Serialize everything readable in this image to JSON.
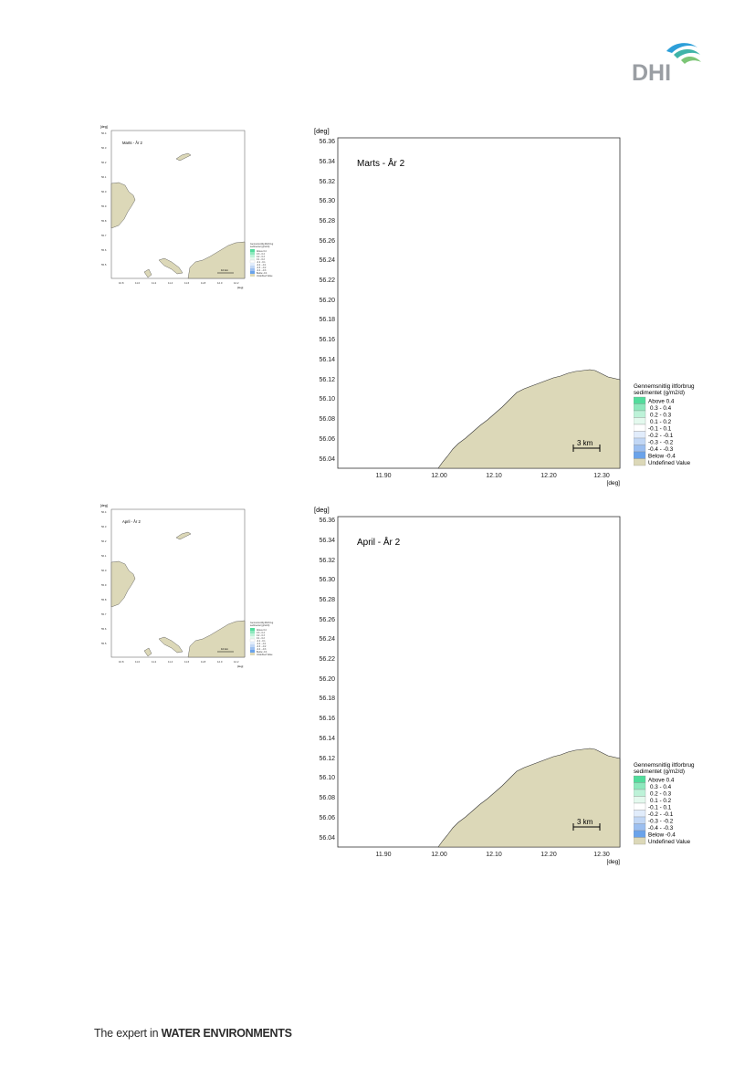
{
  "logo": {
    "text": "DHI"
  },
  "footer": {
    "prefix": "The expert in ",
    "emphasis": "WATER ENVIRONMENTS"
  },
  "legend": {
    "title_line1": "Gennemsnitlig iltforbrug",
    "title_line2": "sedimentet (g/m2/d)",
    "items": [
      {
        "label": "Above  0.4",
        "color": "#52dc9c"
      },
      {
        "label": "0.3 -  0.4",
        "color": "#8de8bd"
      },
      {
        "label": "0.2 -  0.3",
        "color": "#bdf2d8"
      },
      {
        "label": "0.1 -  0.2",
        "color": "#e4f9ee"
      },
      {
        "label": "-0.1 -  0.1",
        "color": "#ffffff"
      },
      {
        "label": "-0.2 - -0.1",
        "color": "#e1ecfb"
      },
      {
        "label": "-0.3 - -0.2",
        "color": "#c2d7f5"
      },
      {
        "label": "-0.4 - -0.3",
        "color": "#9cbff0"
      },
      {
        "label": "Below -0.4",
        "color": "#6aa3ea"
      },
      {
        "label": "Undefined Value",
        "color": "#dcd8b8"
      }
    ]
  },
  "maps": [
    {
      "title": "Marts - År 2",
      "unit": "[deg]",
      "y_ticks": [
        "56.36",
        "56.34",
        "56.32",
        "56.30",
        "56.28",
        "56.26",
        "56.24",
        "56.22",
        "56.20",
        "56.18",
        "56.16",
        "56.14",
        "56.12",
        "56.10",
        "56.08",
        "56.06",
        "56.04"
      ],
      "x_ticks": [
        "11.90",
        "12.00",
        "12.10",
        "12.20",
        "12.30"
      ],
      "scale_bar": "3 km"
    },
    {
      "title": "April - År 2",
      "unit": "[deg]",
      "y_ticks": [
        "56.36",
        "56.34",
        "56.32",
        "56.30",
        "56.28",
        "56.26",
        "56.24",
        "56.22",
        "56.20",
        "56.18",
        "56.16",
        "56.14",
        "56.12",
        "56.10",
        "56.08",
        "56.06",
        "56.04"
      ],
      "x_ticks": [
        "11.90",
        "12.00",
        "12.10",
        "12.20",
        "12.30"
      ],
      "scale_bar": "3 km"
    }
  ],
  "overview_maps": [
    {
      "title": "Marts - År 2",
      "unit": "[deg]",
      "y_ticks": [
        "56.4",
        "56.3",
        "56.2",
        "56.1",
        "56.0",
        "55.9",
        "55.8",
        "55.7",
        "55.6",
        "55.5"
      ],
      "x_ticks": [
        "10.8",
        "11.0",
        "11.2",
        "11.4",
        "11.6",
        "11.8",
        "12.0",
        "12.2"
      ],
      "scale_bar": "10 km",
      "legend_items": [
        "Gennemsnitlig iltforbrug",
        "sedimentet (g/m2/d)",
        "Above 0.4",
        "0.3 - 0.4",
        "0.2 - 0.3",
        "0.1 - 0.2",
        "-0.1 - 0.1",
        "-0.2 - -0.1",
        "-0.3 - -0.2",
        "-0.4 - -0.3",
        "Below -0.4",
        "Undefined Value"
      ]
    },
    {
      "title": "April - År 2",
      "unit": "[deg]",
      "y_ticks": [
        "56.4",
        "56.3",
        "56.2",
        "56.1",
        "56.0",
        "55.9",
        "55.8",
        "55.7",
        "55.6",
        "55.5"
      ],
      "x_ticks": [
        "10.8",
        "11.0",
        "11.2",
        "11.4",
        "11.6",
        "11.8",
        "12.0",
        "12.2"
      ],
      "scale_bar": "10 km",
      "legend_items": [
        "Gennemsnitlig iltforbrug",
        "sedimentet (g/m2/d)",
        "Above 0.4",
        "0.3 - 0.4",
        "0.2 - 0.3",
        "0.1 - 0.2",
        "-0.1 - 0.1",
        "-0.2 - -0.1",
        "-0.3 - -0.2",
        "-0.4 - -0.3",
        "Below -0.4",
        "Undefined Value"
      ]
    }
  ]
}
